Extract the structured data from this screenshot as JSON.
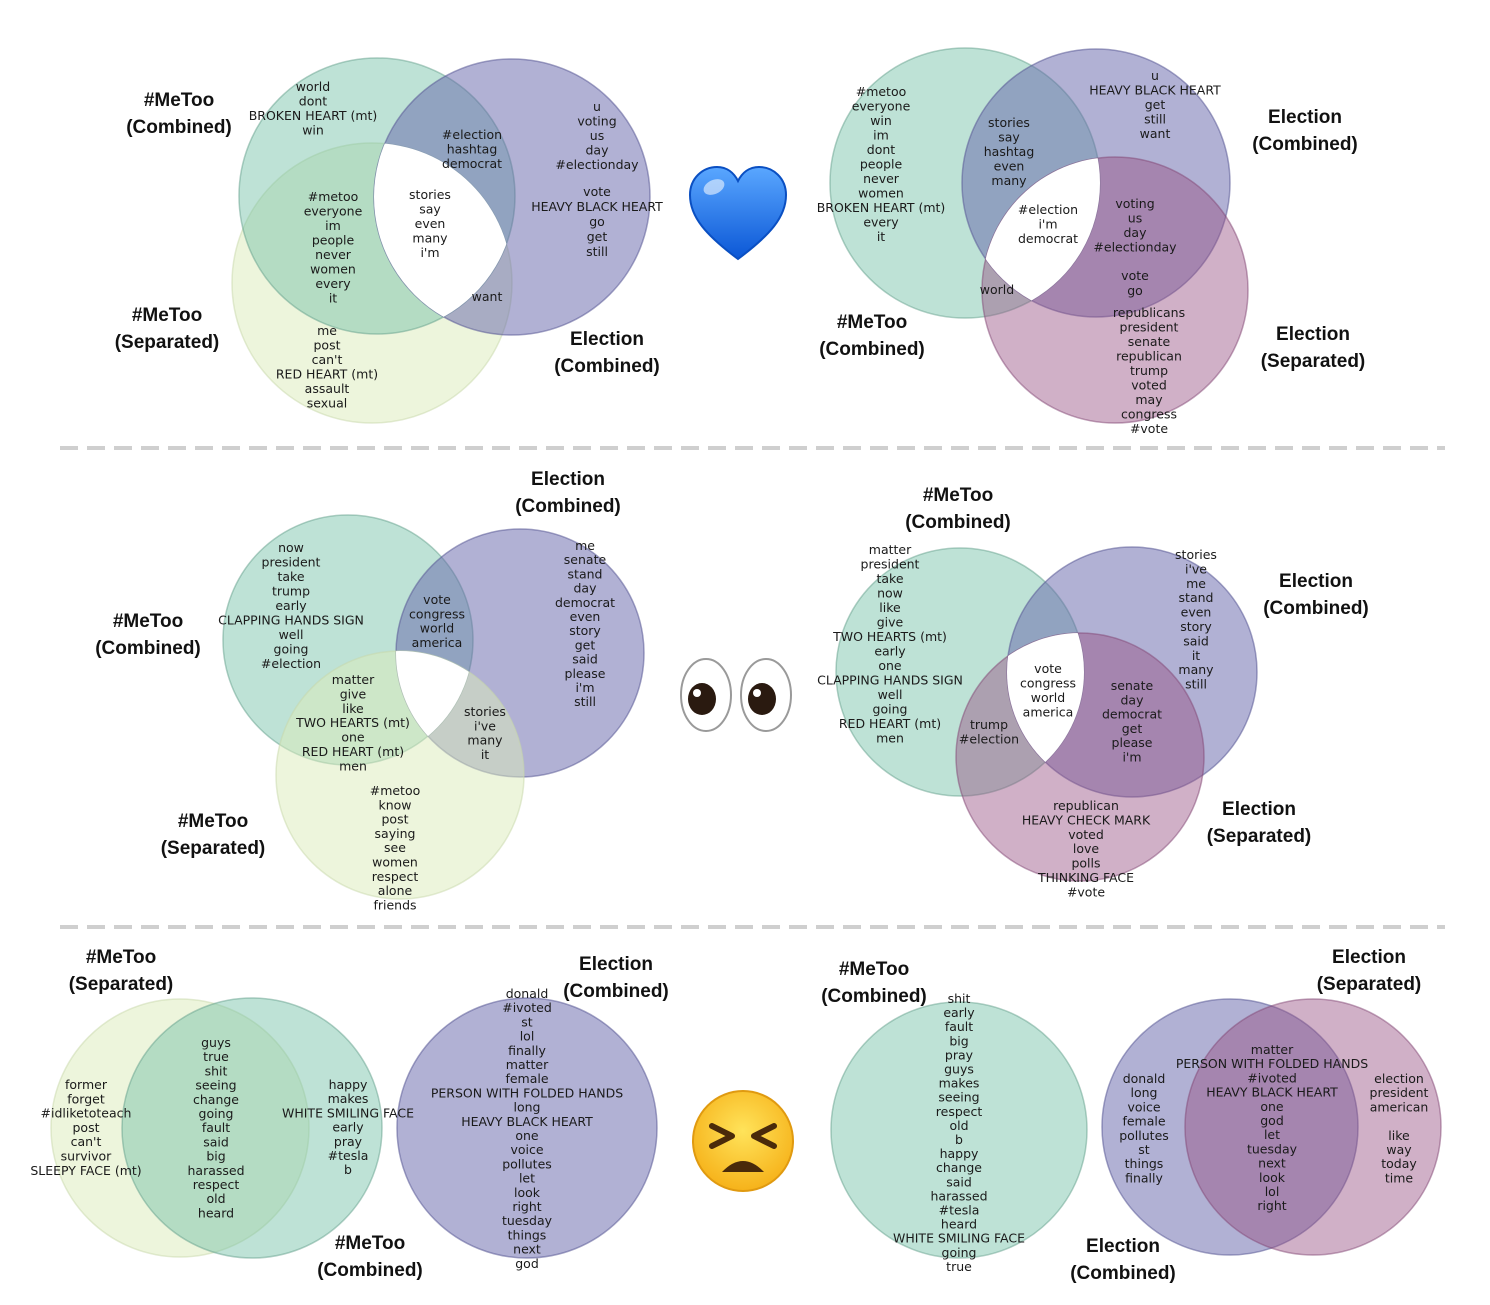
{
  "colors": {
    "metoo_combined": "#8fcdb8",
    "metoo_separated": "#e8f0cf",
    "election_combined": "#9a9ac6",
    "election_separated": "#b78aa7"
  },
  "emojis": [
    "blue-heart-icon",
    "eyes-icon",
    "persevering-face-icon"
  ],
  "panels": [
    {
      "labels": [
        [
          "#MeToo",
          "(Combined)"
        ],
        [
          "#MeToo",
          "(Separated)"
        ],
        [
          "Election",
          "(Combined)"
        ]
      ],
      "groups": [
        [
          "world",
          "dont",
          "BROKEN HEART (mt)",
          "win"
        ],
        [
          "#election",
          "hashtag",
          "democrat"
        ],
        [
          "u",
          "voting",
          "us",
          "day",
          "#electionday"
        ],
        [
          "vote",
          "HEAVY BLACK HEART",
          "go",
          "get",
          "still"
        ],
        [
          "#metoo",
          "everyone",
          "im",
          "people",
          "never",
          "women",
          "every",
          "it"
        ],
        [
          "stories",
          "say",
          "even",
          "many",
          "i'm"
        ],
        [
          "want"
        ],
        [
          "me",
          "post",
          "can't",
          "RED HEART (mt)",
          "assault",
          "sexual"
        ]
      ]
    },
    {
      "labels": [
        [
          "Election",
          "(Combined)"
        ],
        [
          "#MeToo",
          "(Combined)"
        ],
        [
          "Election",
          "(Separated)"
        ]
      ],
      "groups": [
        [
          "#metoo",
          "everyone",
          "win",
          "im",
          "dont",
          "people",
          "never",
          "women",
          "BROKEN HEART (mt)",
          "every",
          "it"
        ],
        [
          "u",
          "HEAVY BLACK HEART",
          "get",
          "still",
          "want"
        ],
        [
          "stories",
          "say",
          "hashtag",
          "even",
          "many"
        ],
        [
          "#election",
          "i'm",
          "democrat"
        ],
        [
          "voting",
          "us",
          "day",
          "#electionday"
        ],
        [
          "vote",
          "go"
        ],
        [
          "world"
        ],
        [
          "republicans",
          "president",
          "senate",
          "republican",
          "trump",
          "voted",
          "may",
          "congress",
          "#vote"
        ]
      ]
    },
    {
      "labels": [
        [
          "Election",
          "(Combined)"
        ],
        [
          "#MeToo",
          "(Combined)"
        ],
        [
          "#MeToo",
          "(Separated)"
        ]
      ],
      "groups": [
        [
          "now",
          "president",
          "take",
          "trump",
          "early",
          "CLAPPING HANDS SIGN",
          "well",
          "going",
          "#election"
        ],
        [
          "vote",
          "congress",
          "world",
          "america"
        ],
        [
          "me",
          "senate",
          "stand",
          "day",
          "democrat",
          "even",
          "story",
          "get",
          "said",
          "please",
          "i'm",
          "still"
        ],
        [
          "matter",
          "give",
          "like",
          "TWO HEARTS (mt)",
          "one",
          "RED HEART (mt)",
          "men"
        ],
        [
          "stories",
          "i've",
          "many",
          "it"
        ],
        [
          "#metoo",
          "know",
          "post",
          "saying",
          "see",
          "women",
          "respect",
          "alone",
          "friends"
        ]
      ]
    },
    {
      "labels": [
        [
          "#MeToo",
          "(Combined)"
        ],
        [
          "Election",
          "(Combined)"
        ],
        [
          "Election",
          "(Separated)"
        ]
      ],
      "groups": [
        [
          "matter",
          "president",
          "take",
          "now",
          "like",
          "give",
          "TWO HEARTS (mt)",
          "early",
          "one",
          "CLAPPING HANDS SIGN",
          "well",
          "going",
          "RED HEART (mt)",
          "men"
        ],
        [
          "stories",
          "i've",
          "me",
          "stand",
          "even",
          "story",
          "said",
          "it",
          "many",
          "still"
        ],
        [
          "vote",
          "congress",
          "world",
          "america"
        ],
        [
          "trump",
          "#election"
        ],
        [
          "senate",
          "day",
          "democrat",
          "get",
          "please",
          "i'm"
        ],
        [
          "republican",
          "HEAVY CHECK MARK",
          "voted",
          "love",
          "polls",
          "THINKING FACE",
          "#vote"
        ]
      ]
    },
    {
      "labels": [
        [
          "#MeToo",
          "(Separated)"
        ],
        [
          "#MeToo",
          "(Combined)"
        ],
        [
          "Election",
          "(Combined)"
        ]
      ],
      "groups": [
        [
          "former",
          "forget",
          "#idliketoteach",
          "post",
          "can't",
          "survivor",
          "SLEEPY FACE (mt)"
        ],
        [
          "guys",
          "true",
          "shit",
          "seeing",
          "change",
          "going",
          "fault",
          "said",
          "big",
          "harassed",
          "respect",
          "old",
          "heard"
        ],
        [
          "happy",
          "makes",
          "WHITE SMILING FACE",
          "early",
          "pray",
          "#tesla",
          "b"
        ],
        [
          "donald",
          "#ivoted",
          "st",
          "lol",
          "finally",
          "matter",
          "female",
          "PERSON WITH FOLDED HANDS",
          "long",
          "HEAVY BLACK HEART",
          "one",
          "voice",
          "pollutes",
          "let",
          "look",
          "right",
          "tuesday",
          "things",
          "next",
          "god"
        ]
      ]
    },
    {
      "labels": [
        [
          "#MeToo",
          "(Combined)"
        ],
        [
          "Election",
          "(Separated)"
        ],
        [
          "Election",
          "(Combined)"
        ]
      ],
      "groups": [
        [
          "shit",
          "early",
          "fault",
          "big",
          "pray",
          "guys",
          "makes",
          "seeing",
          "respect",
          "old",
          "b",
          "happy",
          "change",
          "said",
          "harassed",
          "#tesla",
          "heard",
          "WHITE SMILING FACE",
          "going",
          "true"
        ],
        [
          "donald",
          "long",
          "voice",
          "female",
          "pollutes",
          "st",
          "things",
          "finally"
        ],
        [
          "matter",
          "PERSON WITH FOLDED HANDS",
          "#ivoted",
          "HEAVY BLACK HEART",
          "one",
          "god",
          "let",
          "tuesday",
          "next",
          "look",
          "lol",
          "right"
        ],
        [
          "election",
          "president",
          "american",
          "",
          "like",
          "way",
          "today",
          "time"
        ]
      ]
    }
  ]
}
